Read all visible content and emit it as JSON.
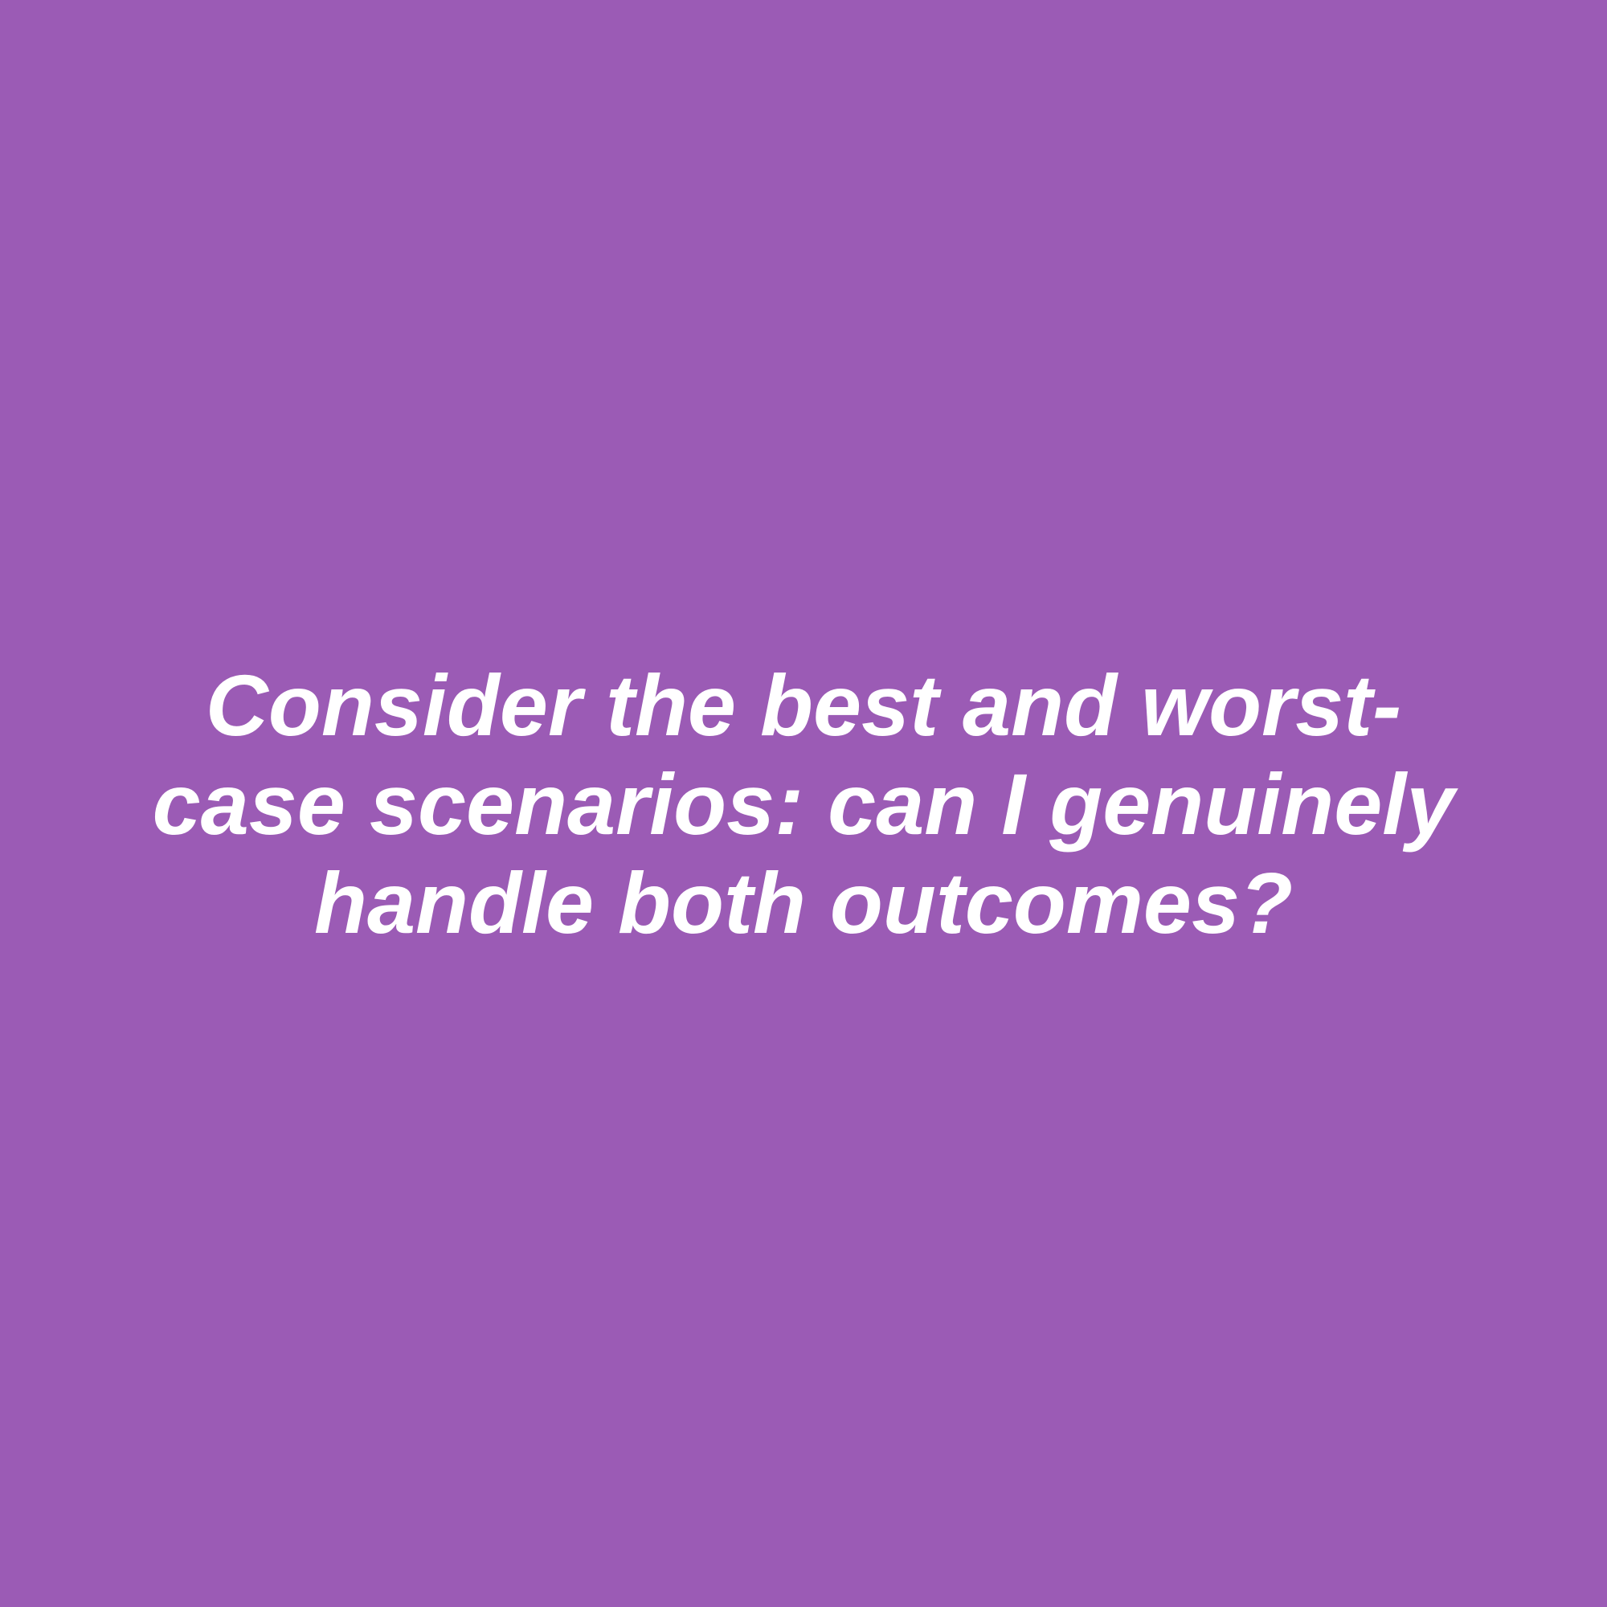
{
  "colors": {
    "background": "#9b5bb5",
    "text": "#ffffff"
  },
  "quote": {
    "text": "Consider the best and worst-case scenarios: can I genuinely handle both outcomes?"
  }
}
